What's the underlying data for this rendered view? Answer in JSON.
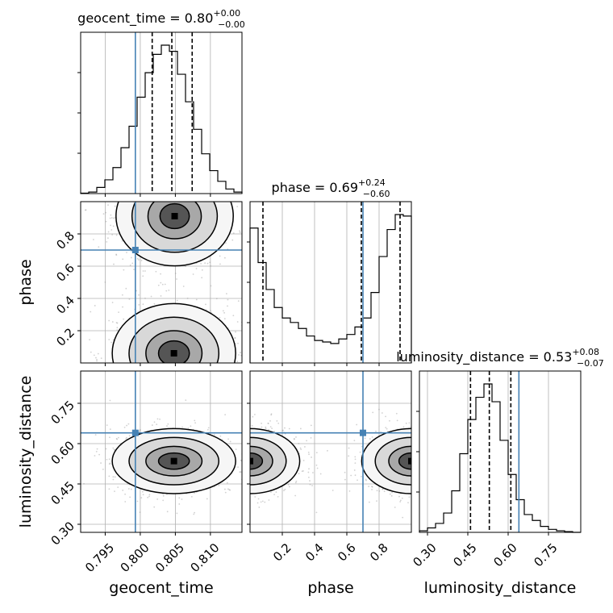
{
  "chart_data": {
    "type": "corner",
    "parameters": [
      "geocent_time",
      "phase",
      "luminosity_distance"
    ],
    "truths": {
      "geocent_time": 0.7993,
      "phase": 0.7,
      "luminosity_distance": 0.64
    },
    "titles": {
      "geocent_time": {
        "prefix": "geocent_time = 0.80",
        "plus": "+0.00",
        "minus": "−0.00"
      },
      "phase": {
        "prefix": "phase = 0.69",
        "plus": "+0.24",
        "minus": "−0.60"
      },
      "luminosity_distance": {
        "prefix": "luminosity_distance = 0.53",
        "plus": "+0.08",
        "minus": "−0.07"
      }
    },
    "ranges": {
      "geocent_time": [
        0.7915,
        0.8145
      ],
      "phase": [
        0.0,
        1.0
      ],
      "luminosity_distance": [
        0.27,
        0.87
      ]
    },
    "ticks": {
      "geocent_time": [
        "0.795",
        "0.800",
        "0.805",
        "0.810"
      ],
      "phase": [
        "0.2",
        "0.4",
        "0.6",
        "0.8"
      ],
      "luminosity_distance": [
        "0.30",
        "0.45",
        "0.60",
        "0.75"
      ]
    },
    "quantiles": {
      "geocent_time": [
        0.8017,
        0.8045,
        0.8074
      ],
      "phase": [
        0.08,
        0.69,
        0.93
      ],
      "luminosity_distance": [
        0.46,
        0.53,
        0.61
      ]
    },
    "histograms": {
      "geocent_time": [
        0.003,
        0.01,
        0.04,
        0.09,
        0.17,
        0.3,
        0.44,
        0.63,
        0.79,
        0.91,
        0.97,
        0.93,
        0.78,
        0.6,
        0.42,
        0.26,
        0.15,
        0.08,
        0.03,
        0.01
      ],
      "phase": [
        0.9,
        0.67,
        0.49,
        0.37,
        0.3,
        0.27,
        0.23,
        0.18,
        0.15,
        0.14,
        0.13,
        0.16,
        0.19,
        0.24,
        0.3,
        0.47,
        0.71,
        0.89,
        0.99,
        0.98
      ],
      "luminosity_distance": [
        0.01,
        0.03,
        0.06,
        0.13,
        0.28,
        0.53,
        0.76,
        0.91,
        1.0,
        0.88,
        0.62,
        0.39,
        0.22,
        0.12,
        0.08,
        0.04,
        0.02,
        0.01,
        0.005,
        0.0
      ]
    },
    "posterior_modes": {
      "geocent_time_vs_phase": [
        {
          "x": 0.8049,
          "y": 0.91,
          "sx": 0.0038,
          "sy": 0.14
        },
        {
          "x": 0.8048,
          "y": 0.06,
          "sx": 0.004,
          "sy": 0.14
        }
      ],
      "geocent_time_vs_luminosity_distance": [
        {
          "x": 0.8048,
          "y": 0.535,
          "sx": 0.004,
          "sy": 0.055
        }
      ],
      "phase_vs_luminosity_distance": [
        {
          "x": 0.0,
          "y": 0.535,
          "sx": 0.14,
          "sy": 0.055
        },
        {
          "x": 1.0,
          "y": 0.535,
          "sx": 0.14,
          "sy": 0.055
        }
      ]
    },
    "grid": true,
    "truth_color": "#4682b4",
    "line_color": "#000000"
  }
}
